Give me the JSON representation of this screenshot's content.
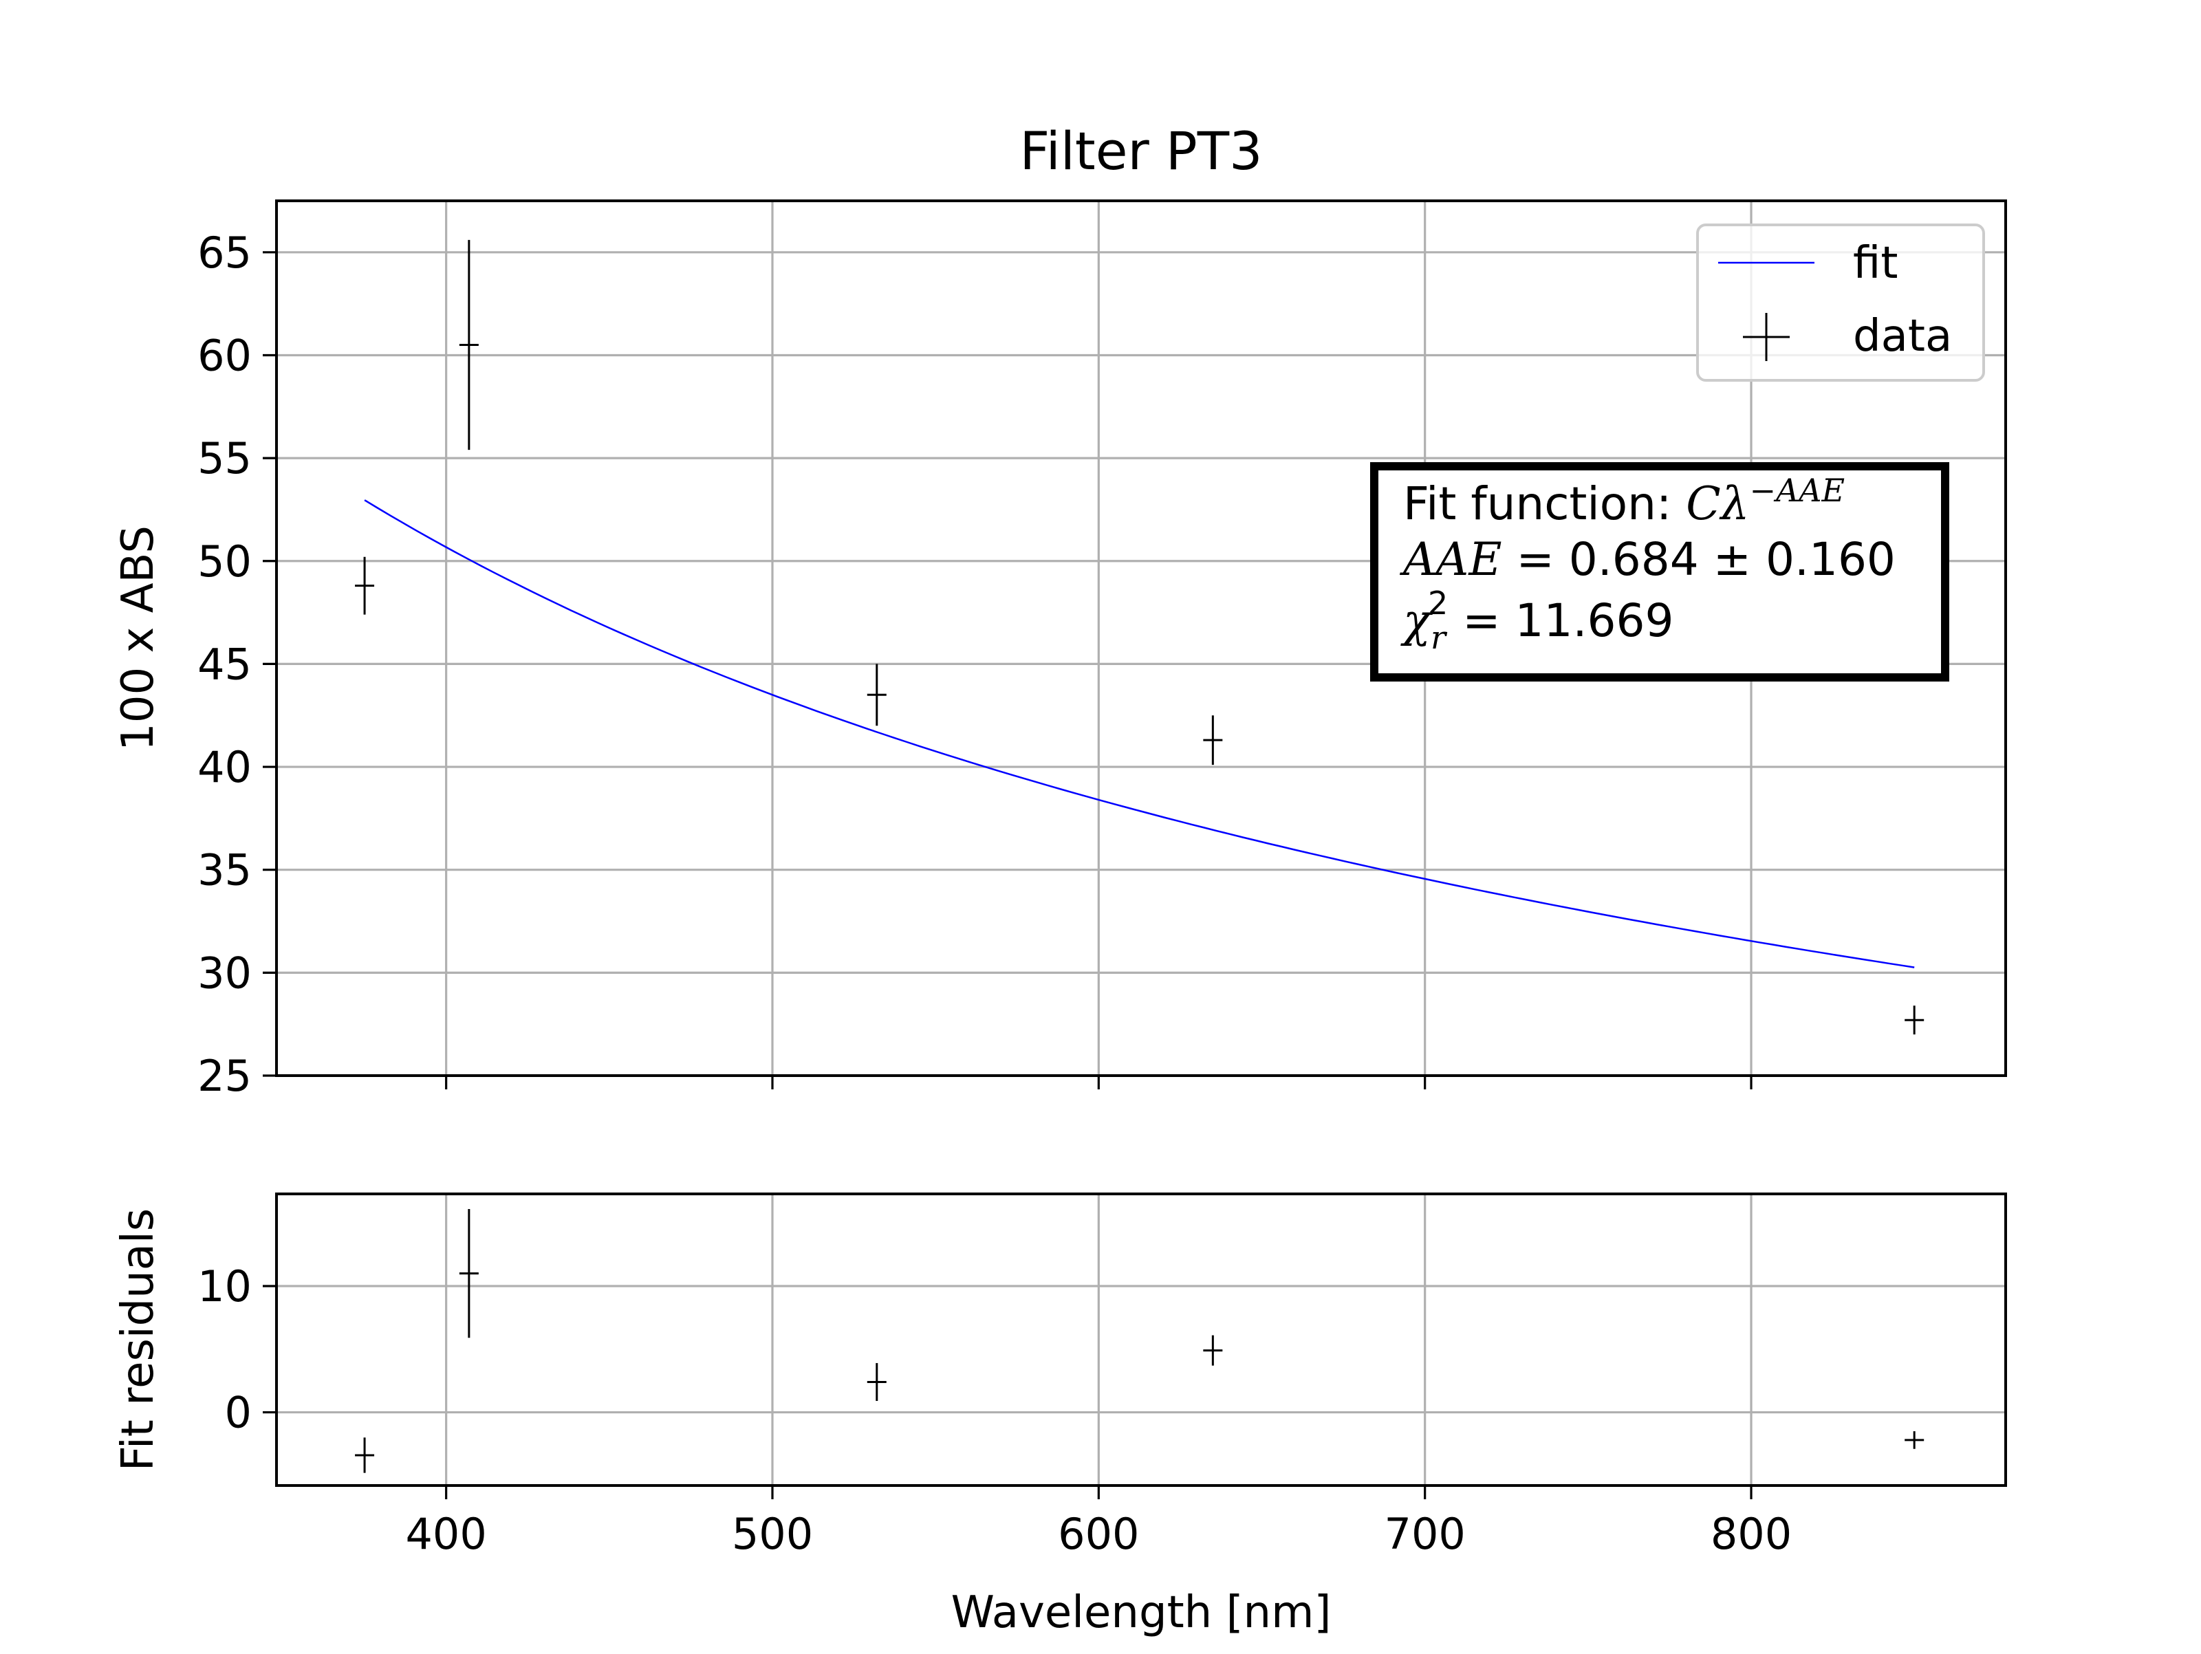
{
  "chart_data": [
    {
      "type": "scatter",
      "panel": "main",
      "title": "Filter PT3",
      "xlabel": "",
      "ylabel": "100 x ABS",
      "xlim": [
        348,
        878
      ],
      "ylim": [
        25,
        67.5
      ],
      "xticks": [
        400,
        500,
        600,
        700,
        800
      ],
      "yticks": [
        25,
        30,
        35,
        40,
        45,
        50,
        55,
        60,
        65
      ],
      "grid": true,
      "legend": {
        "placement": "top-right",
        "entries": [
          "fit",
          "data"
        ]
      },
      "series": [
        {
          "name": "fit",
          "kind": "line",
          "color": "#0000ff",
          "function": "C*x^-AAE",
          "C": 3052,
          "AAE": 0.684,
          "x_range": [
            375,
            850
          ]
        },
        {
          "name": "data",
          "kind": "errorbar",
          "color": "#000000",
          "points": [
            {
              "x": 375,
              "y": 48.8,
              "yerr": 1.4
            },
            {
              "x": 407,
              "y": 60.5,
              "yerr": 5.1
            },
            {
              "x": 532,
              "y": 43.5,
              "yerr": 1.5
            },
            {
              "x": 635,
              "y": 41.3,
              "yerr": 1.2
            },
            {
              "x": 850,
              "y": 27.7,
              "yerr": 0.7
            }
          ]
        }
      ],
      "annotation": {
        "line1_prefix": "Fit function: ",
        "line1_math": "Cλ",
        "line1_sup": "−AAE",
        "line2_math": "AAE",
        "line2_rest": " =  0.684 ± 0.160",
        "line3_math": "χ",
        "line3_sub": "r",
        "line3_sup": "2",
        "line3_rest": " = 11.669"
      }
    },
    {
      "type": "scatter",
      "panel": "residuals",
      "title": "",
      "xlabel": "Wavelength [nm]",
      "ylabel": "Fit residuals",
      "xlim": [
        348,
        878
      ],
      "ylim": [
        -5.8,
        17.3
      ],
      "xticks": [
        400,
        500,
        600,
        700,
        800
      ],
      "yticks": [
        0,
        10
      ],
      "grid": true,
      "series": [
        {
          "name": "",
          "kind": "errorbar",
          "color": "#000000",
          "points": [
            {
              "x": 375,
              "y": -3.4,
              "yerr": 1.4
            },
            {
              "x": 407,
              "y": 11.0,
              "yerr": 5.1
            },
            {
              "x": 532,
              "y": 2.4,
              "yerr": 1.5
            },
            {
              "x": 635,
              "y": 4.9,
              "yerr": 1.2
            },
            {
              "x": 850,
              "y": -2.2,
              "yerr": 0.7
            }
          ]
        }
      ]
    }
  ]
}
